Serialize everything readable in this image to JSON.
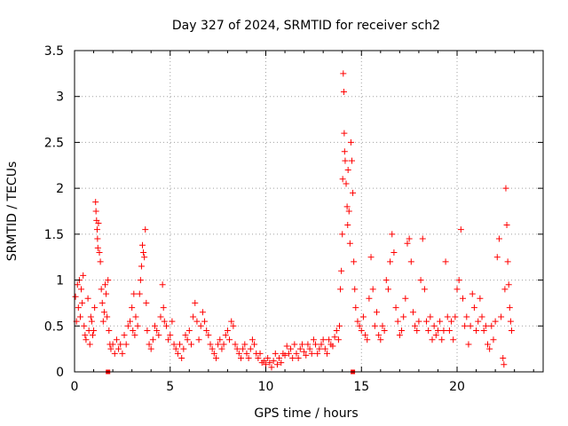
{
  "chart_data": {
    "type": "scatter",
    "title": "Day 327 of 2024, SRMTID for receiver sch2",
    "xlabel": "GPS time / hours",
    "ylabel": "SRMTID / TECUs",
    "xlim": [
      0,
      24.5
    ],
    "ylim": [
      0,
      3.5
    ],
    "grid": true,
    "marker": "+",
    "x_ticks": [
      {
        "value": 0,
        "label": "0"
      },
      {
        "value": 5,
        "label": "5"
      },
      {
        "value": 10,
        "label": "10"
      },
      {
        "value": 15,
        "label": "15"
      },
      {
        "value": 20,
        "label": "20"
      }
    ],
    "y_ticks": [
      {
        "value": 0,
        "label": "0"
      },
      {
        "value": 0.5,
        "label": "0.5"
      },
      {
        "value": 1,
        "label": "1"
      },
      {
        "value": 1.5,
        "label": "1.5"
      },
      {
        "value": 2,
        "label": "2"
      },
      {
        "value": 2.5,
        "label": "2.5"
      },
      {
        "value": 3,
        "label": "3"
      },
      {
        "value": 3.5,
        "label": "3.5"
      }
    ],
    "colors": {
      "series": "#ff0000",
      "grid": "#a0a0a0",
      "axes": "#000000"
    },
    "series": [
      {
        "name": "SRMTID",
        "gap_markers": [
          1.75,
          14.55
        ],
        "points": [
          [
            0.05,
            0.82
          ],
          [
            0.1,
            0.55
          ],
          [
            0.15,
            0.95
          ],
          [
            0.2,
            0.7
          ],
          [
            0.25,
            1.0
          ],
          [
            0.3,
            0.6
          ],
          [
            0.35,
            0.9
          ],
          [
            0.4,
            0.75
          ],
          [
            0.45,
            1.05
          ],
          [
            0.5,
            0.5
          ],
          [
            0.55,
            0.4
          ],
          [
            0.6,
            0.35
          ],
          [
            0.7,
            0.8
          ],
          [
            0.75,
            0.45
          ],
          [
            0.8,
            0.3
          ],
          [
            0.85,
            0.6
          ],
          [
            0.9,
            0.55
          ],
          [
            0.95,
            0.4
          ],
          [
            1.0,
            0.45
          ],
          [
            1.05,
            0.7
          ],
          [
            1.1,
            1.85
          ],
          [
            1.12,
            1.75
          ],
          [
            1.15,
            1.65
          ],
          [
            1.18,
            1.55
          ],
          [
            1.2,
            1.45
          ],
          [
            1.22,
            1.35
          ],
          [
            1.25,
            1.62
          ],
          [
            1.3,
            1.3
          ],
          [
            1.35,
            1.2
          ],
          [
            1.4,
            0.9
          ],
          [
            1.45,
            0.75
          ],
          [
            1.5,
            0.55
          ],
          [
            1.55,
            0.65
          ],
          [
            1.6,
            0.95
          ],
          [
            1.65,
            0.85
          ],
          [
            1.7,
            0.6
          ],
          [
            1.75,
            1.0
          ],
          [
            1.8,
            0.45
          ],
          [
            1.85,
            0.3
          ],
          [
            1.9,
            0.25
          ],
          [
            2.0,
            0.3
          ],
          [
            2.1,
            0.2
          ],
          [
            2.2,
            0.35
          ],
          [
            2.3,
            0.25
          ],
          [
            2.4,
            0.3
          ],
          [
            2.5,
            0.2
          ],
          [
            2.6,
            0.4
          ],
          [
            2.7,
            0.3
          ],
          [
            2.8,
            0.5
          ],
          [
            2.9,
            0.55
          ],
          [
            3.0,
            0.7
          ],
          [
            3.05,
            0.45
          ],
          [
            3.1,
            0.85
          ],
          [
            3.15,
            0.4
          ],
          [
            3.2,
            0.6
          ],
          [
            3.3,
            0.5
          ],
          [
            3.4,
            0.85
          ],
          [
            3.45,
            1.0
          ],
          [
            3.5,
            1.15
          ],
          [
            3.55,
            1.38
          ],
          [
            3.6,
            1.3
          ],
          [
            3.65,
            1.25
          ],
          [
            3.7,
            1.55
          ],
          [
            3.75,
            0.75
          ],
          [
            3.8,
            0.45
          ],
          [
            3.9,
            0.3
          ],
          [
            4.0,
            0.25
          ],
          [
            4.1,
            0.35
          ],
          [
            4.2,
            0.5
          ],
          [
            4.3,
            0.45
          ],
          [
            4.4,
            0.4
          ],
          [
            4.5,
            0.6
          ],
          [
            4.6,
            0.95
          ],
          [
            4.65,
            0.7
          ],
          [
            4.7,
            0.55
          ],
          [
            4.8,
            0.5
          ],
          [
            4.9,
            0.35
          ],
          [
            5.0,
            0.4
          ],
          [
            5.1,
            0.55
          ],
          [
            5.2,
            0.3
          ],
          [
            5.3,
            0.25
          ],
          [
            5.4,
            0.2
          ],
          [
            5.5,
            0.3
          ],
          [
            5.6,
            0.15
          ],
          [
            5.7,
            0.25
          ],
          [
            5.8,
            0.4
          ],
          [
            5.9,
            0.35
          ],
          [
            6.0,
            0.45
          ],
          [
            6.1,
            0.3
          ],
          [
            6.2,
            0.6
          ],
          [
            6.3,
            0.75
          ],
          [
            6.4,
            0.55
          ],
          [
            6.5,
            0.35
          ],
          [
            6.6,
            0.5
          ],
          [
            6.7,
            0.65
          ],
          [
            6.8,
            0.55
          ],
          [
            6.9,
            0.45
          ],
          [
            7.0,
            0.4
          ],
          [
            7.1,
            0.3
          ],
          [
            7.2,
            0.25
          ],
          [
            7.3,
            0.2
          ],
          [
            7.4,
            0.15
          ],
          [
            7.5,
            0.3
          ],
          [
            7.6,
            0.35
          ],
          [
            7.7,
            0.25
          ],
          [
            7.8,
            0.3
          ],
          [
            7.9,
            0.4
          ],
          [
            8.0,
            0.45
          ],
          [
            8.1,
            0.35
          ],
          [
            8.2,
            0.55
          ],
          [
            8.3,
            0.5
          ],
          [
            8.4,
            0.3
          ],
          [
            8.5,
            0.25
          ],
          [
            8.6,
            0.2
          ],
          [
            8.7,
            0.15
          ],
          [
            8.8,
            0.25
          ],
          [
            8.9,
            0.3
          ],
          [
            9.0,
            0.2
          ],
          [
            9.1,
            0.15
          ],
          [
            9.2,
            0.25
          ],
          [
            9.3,
            0.35
          ],
          [
            9.4,
            0.3
          ],
          [
            9.5,
            0.2
          ],
          [
            9.6,
            0.15
          ],
          [
            9.7,
            0.2
          ],
          [
            9.8,
            0.1
          ],
          [
            9.9,
            0.12
          ],
          [
            10.0,
            0.08
          ],
          [
            10.1,
            0.15
          ],
          [
            10.2,
            0.1
          ],
          [
            10.3,
            0.05
          ],
          [
            10.4,
            0.12
          ],
          [
            10.5,
            0.2
          ],
          [
            10.6,
            0.08
          ],
          [
            10.7,
            0.15
          ],
          [
            10.8,
            0.1
          ],
          [
            10.9,
            0.2
          ],
          [
            11.0,
            0.18
          ],
          [
            11.1,
            0.28
          ],
          [
            11.2,
            0.2
          ],
          [
            11.3,
            0.25
          ],
          [
            11.4,
            0.15
          ],
          [
            11.5,
            0.3
          ],
          [
            11.6,
            0.2
          ],
          [
            11.7,
            0.15
          ],
          [
            11.8,
            0.25
          ],
          [
            11.9,
            0.3
          ],
          [
            12.0,
            0.22
          ],
          [
            12.1,
            0.18
          ],
          [
            12.2,
            0.3
          ],
          [
            12.3,
            0.25
          ],
          [
            12.4,
            0.2
          ],
          [
            12.5,
            0.35
          ],
          [
            12.6,
            0.3
          ],
          [
            12.7,
            0.2
          ],
          [
            12.8,
            0.25
          ],
          [
            12.9,
            0.3
          ],
          [
            13.0,
            0.35
          ],
          [
            13.1,
            0.25
          ],
          [
            13.2,
            0.2
          ],
          [
            13.3,
            0.35
          ],
          [
            13.4,
            0.3
          ],
          [
            13.5,
            0.28
          ],
          [
            13.6,
            0.38
          ],
          [
            13.7,
            0.45
          ],
          [
            13.8,
            0.35
          ],
          [
            13.85,
            0.5
          ],
          [
            13.9,
            0.9
          ],
          [
            13.95,
            1.1
          ],
          [
            14.0,
            1.5
          ],
          [
            14.02,
            2.1
          ],
          [
            14.05,
            3.25
          ],
          [
            14.08,
            3.05
          ],
          [
            14.1,
            2.6
          ],
          [
            14.12,
            2.4
          ],
          [
            14.15,
            2.3
          ],
          [
            14.2,
            2.05
          ],
          [
            14.25,
            1.8
          ],
          [
            14.28,
            1.6
          ],
          [
            14.3,
            2.2
          ],
          [
            14.35,
            1.75
          ],
          [
            14.4,
            1.4
          ],
          [
            14.45,
            2.5
          ],
          [
            14.5,
            2.3
          ],
          [
            14.55,
            1.95
          ],
          [
            14.6,
            1.2
          ],
          [
            14.65,
            0.9
          ],
          [
            14.7,
            0.7
          ],
          [
            14.8,
            0.55
          ],
          [
            14.9,
            0.5
          ],
          [
            15.0,
            0.45
          ],
          [
            15.1,
            0.6
          ],
          [
            15.2,
            0.4
          ],
          [
            15.3,
            0.35
          ],
          [
            15.4,
            0.8
          ],
          [
            15.5,
            1.25
          ],
          [
            15.6,
            0.9
          ],
          [
            15.7,
            0.5
          ],
          [
            15.8,
            0.65
          ],
          [
            15.9,
            0.4
          ],
          [
            16.0,
            0.35
          ],
          [
            16.1,
            0.5
          ],
          [
            16.2,
            0.45
          ],
          [
            16.3,
            1.0
          ],
          [
            16.4,
            0.9
          ],
          [
            16.5,
            1.2
          ],
          [
            16.6,
            1.5
          ],
          [
            16.7,
            1.3
          ],
          [
            16.8,
            0.7
          ],
          [
            16.9,
            0.55
          ],
          [
            17.0,
            0.4
          ],
          [
            17.1,
            0.45
          ],
          [
            17.2,
            0.6
          ],
          [
            17.3,
            0.8
          ],
          [
            17.4,
            1.4
          ],
          [
            17.5,
            1.45
          ],
          [
            17.6,
            1.2
          ],
          [
            17.7,
            0.65
          ],
          [
            17.8,
            0.5
          ],
          [
            17.9,
            0.45
          ],
          [
            18.0,
            0.55
          ],
          [
            18.1,
            1.0
          ],
          [
            18.2,
            1.45
          ],
          [
            18.3,
            0.9
          ],
          [
            18.4,
            0.55
          ],
          [
            18.5,
            0.45
          ],
          [
            18.6,
            0.6
          ],
          [
            18.7,
            0.35
          ],
          [
            18.8,
            0.5
          ],
          [
            18.9,
            0.4
          ],
          [
            19.0,
            0.45
          ],
          [
            19.1,
            0.55
          ],
          [
            19.2,
            0.35
          ],
          [
            19.3,
            0.45
          ],
          [
            19.4,
            1.2
          ],
          [
            19.5,
            0.6
          ],
          [
            19.6,
            0.45
          ],
          [
            19.7,
            0.55
          ],
          [
            19.8,
            0.35
          ],
          [
            19.9,
            0.6
          ],
          [
            20.0,
            0.9
          ],
          [
            20.1,
            1.0
          ],
          [
            20.2,
            1.55
          ],
          [
            20.3,
            0.8
          ],
          [
            20.4,
            0.5
          ],
          [
            20.5,
            0.6
          ],
          [
            20.6,
            0.3
          ],
          [
            20.7,
            0.5
          ],
          [
            20.8,
            0.85
          ],
          [
            20.9,
            0.7
          ],
          [
            21.0,
            0.45
          ],
          [
            21.1,
            0.55
          ],
          [
            21.2,
            0.8
          ],
          [
            21.3,
            0.6
          ],
          [
            21.4,
            0.45
          ],
          [
            21.5,
            0.5
          ],
          [
            21.6,
            0.3
          ],
          [
            21.7,
            0.25
          ],
          [
            21.8,
            0.5
          ],
          [
            21.9,
            0.35
          ],
          [
            22.0,
            0.55
          ],
          [
            22.1,
            1.25
          ],
          [
            22.2,
            1.45
          ],
          [
            22.3,
            0.6
          ],
          [
            22.4,
            0.15
          ],
          [
            22.45,
            0.08
          ],
          [
            22.5,
            0.9
          ],
          [
            22.55,
            2.0
          ],
          [
            22.6,
            1.6
          ],
          [
            22.65,
            1.2
          ],
          [
            22.7,
            0.95
          ],
          [
            22.75,
            0.7
          ],
          [
            22.8,
            0.55
          ],
          [
            22.85,
            0.45
          ]
        ]
      }
    ]
  }
}
